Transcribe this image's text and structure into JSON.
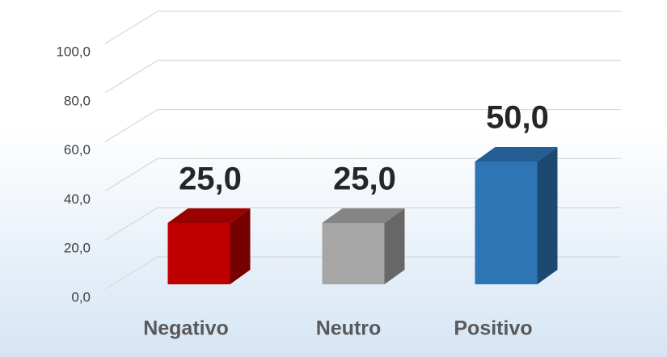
{
  "chart_data": {
    "type": "bar3d",
    "categories": [
      "Negativo",
      "Neutro",
      "Positivo"
    ],
    "values": [
      25,
      25,
      50
    ],
    "value_labels": [
      "25,0",
      "25,0",
      "50,0"
    ],
    "colors": [
      "#c00000",
      "#a6a6a6",
      "#2e75b6"
    ],
    "ylim": [
      0,
      100
    ],
    "yticks": [
      {
        "value": 0,
        "label": "0,0"
      },
      {
        "value": 20,
        "label": "20,0"
      },
      {
        "value": 40,
        "label": "40,0"
      },
      {
        "value": 60,
        "label": "60,0"
      },
      {
        "value": 80,
        "label": "80,0"
      },
      {
        "value": 100,
        "label": "100,0"
      }
    ],
    "grid": true
  }
}
